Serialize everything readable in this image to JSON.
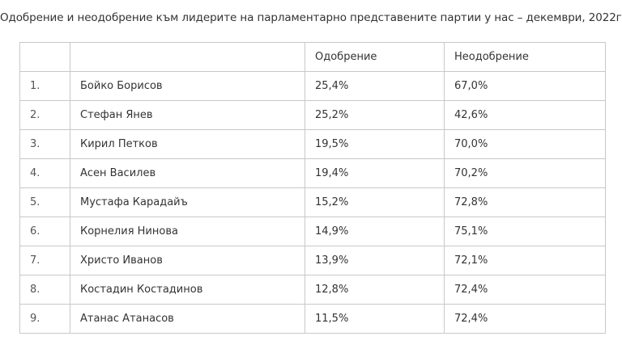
{
  "title": "Одобрение и неодобрение към лидерите на парламентарно представените партии у нас – декември, 2022г.",
  "chart_data": {
    "type": "table",
    "columns": [
      "",
      "",
      "Одобрение",
      "Неодобрение"
    ],
    "rows": [
      {
        "num": "1.",
        "name": "Бойко Борисов",
        "approval": "25,4%",
        "disapproval": "67,0%"
      },
      {
        "num": "2.",
        "name": "Стефан Янев",
        "approval": "25,2%",
        "disapproval": "42,6%"
      },
      {
        "num": "3.",
        "name": "Кирил Петков",
        "approval": "19,5%",
        "disapproval": "70,0%"
      },
      {
        "num": "4.",
        "name": "Асен Василев",
        "approval": "19,4%",
        "disapproval": "70,2%"
      },
      {
        "num": "5.",
        "name": "Мустафа Карадайъ",
        "approval": "15,2%",
        "disapproval": "72,8%"
      },
      {
        "num": "6.",
        "name": "Корнелия Нинова",
        "approval": "14,9%",
        "disapproval": "75,1%"
      },
      {
        "num": "7.",
        "name": "Христо Иванов",
        "approval": "13,9%",
        "disapproval": "72,1%"
      },
      {
        "num": "8.",
        "name": "Костадин Костадинов",
        "approval": "12,8%",
        "disapproval": "72,4%"
      },
      {
        "num": "9.",
        "name": "Атанас Атанасов",
        "approval": "11,5%",
        "disapproval": "72,4%"
      }
    ]
  }
}
